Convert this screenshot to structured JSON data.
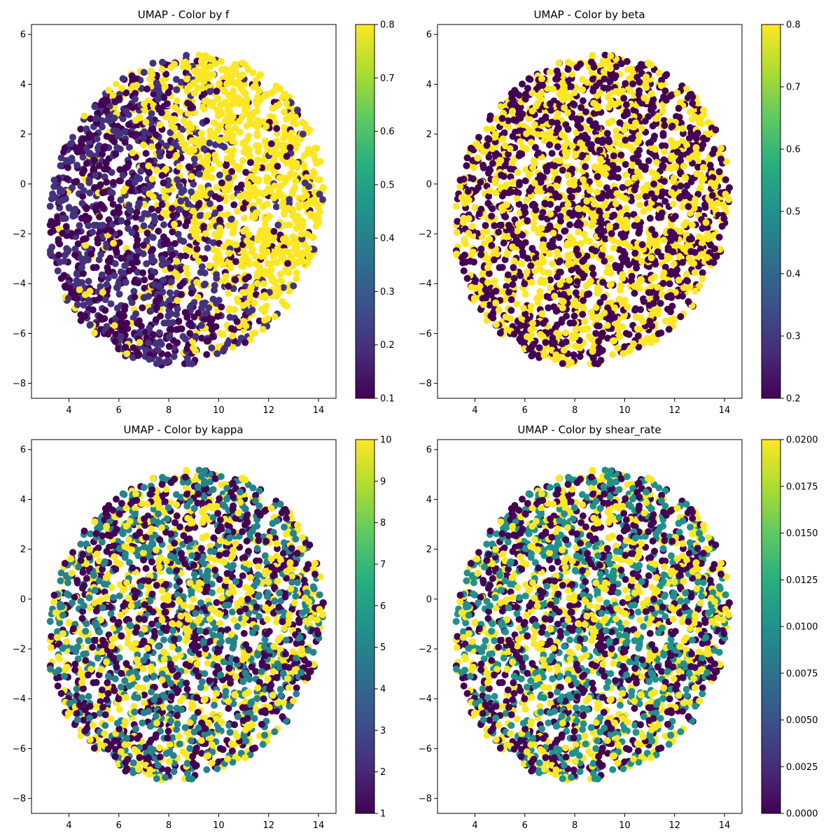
{
  "chart_data": [
    {
      "type": "scatter",
      "title": "UMAP - Color by f",
      "color_variable": "f",
      "xlim": [
        2.5,
        14.7
      ],
      "ylim": [
        -8.6,
        6.4
      ],
      "x_ticks": [
        4,
        6,
        8,
        10,
        12,
        14
      ],
      "y_ticks": [
        -8,
        -6,
        -4,
        -2,
        0,
        2,
        4,
        6
      ],
      "colorbar": {
        "min": 0.1,
        "max": 0.8,
        "ticks": [
          "0.1",
          "0.2",
          "0.3",
          "0.4",
          "0.5",
          "0.6",
          "0.7",
          "0.8"
        ]
      },
      "levels": [
        0.1,
        0.2,
        0.8
      ],
      "colormap": "viridis",
      "point_count_estimate": 3200,
      "grid": false
    },
    {
      "type": "scatter",
      "title": "UMAP - Color by beta",
      "color_variable": "beta",
      "xlim": [
        2.5,
        14.7
      ],
      "ylim": [
        -8.6,
        6.4
      ],
      "x_ticks": [
        4,
        6,
        8,
        10,
        12,
        14
      ],
      "y_ticks": [
        -8,
        -6,
        -4,
        -2,
        0,
        2,
        4,
        6
      ],
      "colorbar": {
        "min": 0.2,
        "max": 0.8,
        "ticks": [
          "0.2",
          "0.3",
          "0.4",
          "0.5",
          "0.6",
          "0.7",
          "0.8"
        ]
      },
      "levels": [
        0.2,
        0.8
      ],
      "colormap": "viridis",
      "point_count_estimate": 3200,
      "grid": false
    },
    {
      "type": "scatter",
      "title": "UMAP - Color by kappa",
      "color_variable": "kappa",
      "xlim": [
        2.5,
        14.7
      ],
      "ylim": [
        -8.6,
        6.4
      ],
      "x_ticks": [
        4,
        6,
        8,
        10,
        12,
        14
      ],
      "y_ticks": [
        -8,
        -6,
        -4,
        -2,
        0,
        2,
        4,
        6
      ],
      "colorbar": {
        "min": 1,
        "max": 10,
        "ticks": [
          "1",
          "2",
          "3",
          "4",
          "5",
          "6",
          "7",
          "8",
          "9",
          "10"
        ]
      },
      "levels": [
        1,
        5,
        10
      ],
      "colormap": "viridis",
      "point_count_estimate": 3200,
      "grid": false
    },
    {
      "type": "scatter",
      "title": "UMAP - Color by shear_rate",
      "color_variable": "shear_rate",
      "xlim": [
        2.5,
        14.7
      ],
      "ylim": [
        -8.6,
        6.4
      ],
      "x_ticks": [
        4,
        6,
        8,
        10,
        12,
        14
      ],
      "y_ticks": [
        -8,
        -6,
        -4,
        -2,
        0,
        2,
        4,
        6
      ],
      "colorbar": {
        "min": 0.0,
        "max": 0.02,
        "ticks": [
          "0.0000",
          "0.0025",
          "0.0050",
          "0.0075",
          "0.0100",
          "0.0125",
          "0.0150",
          "0.0175",
          "0.0200"
        ]
      },
      "levels": [
        0.0,
        0.01,
        0.02
      ],
      "colormap": "viridis",
      "point_count_estimate": 3200,
      "grid": false
    }
  ]
}
